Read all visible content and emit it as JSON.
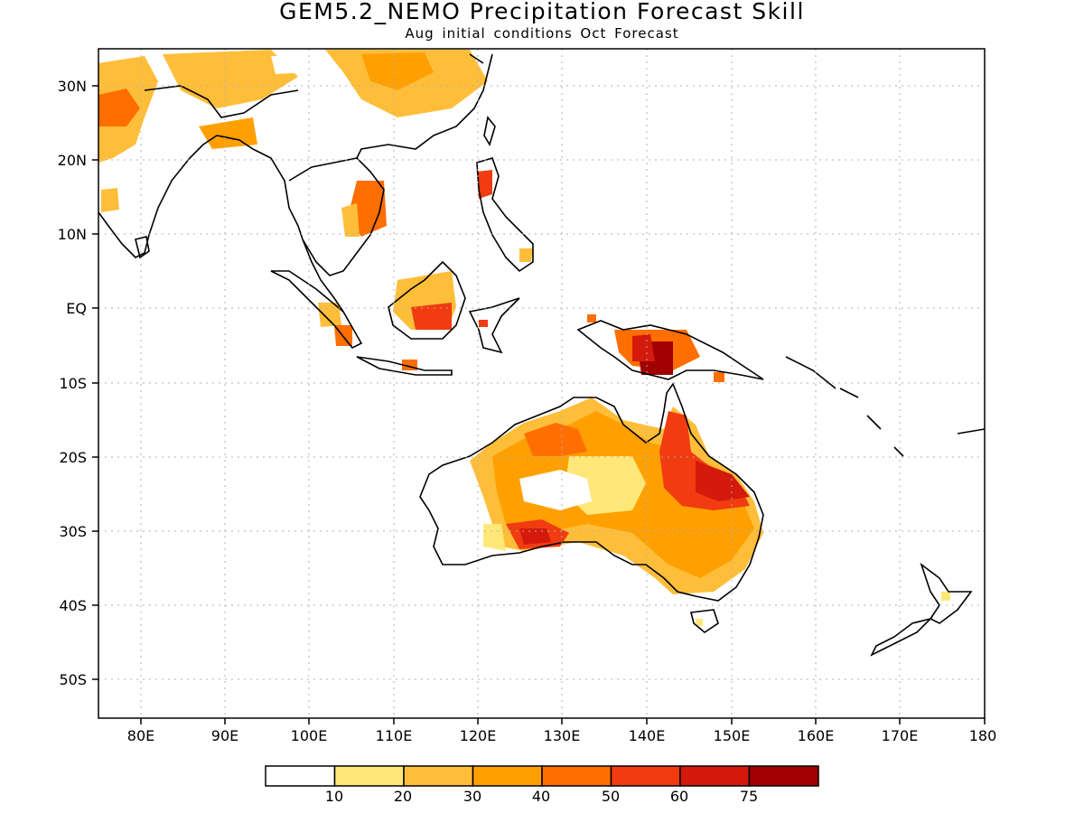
{
  "header": {
    "title": "GEM5.2_NEMO Precipitation Forecast Skill",
    "subtitle": "Aug initial conditions  Oct Forecast"
  },
  "map": {
    "lon_range": [
      75,
      180
    ],
    "lat_range": [
      -55,
      35
    ],
    "x_ticks": [
      "80E",
      "90E",
      "100E",
      "110E",
      "120E",
      "130E",
      "140E",
      "150E",
      "160E",
      "170E",
      "180"
    ],
    "y_ticks": [
      "30N",
      "20N",
      "10N",
      "EQ",
      "10S",
      "20S",
      "30S",
      "40S",
      "50S"
    ],
    "grid": true,
    "grid_style": "dotted"
  },
  "colorbar": {
    "labels": [
      "10",
      "20",
      "30",
      "40",
      "50",
      "60",
      "75"
    ],
    "colors": [
      "#ffffff",
      "#ffe878",
      "#ffbe3a",
      "#ffa000",
      "#ff6e00",
      "#f03c10",
      "#d41a0c",
      "#a00000"
    ]
  },
  "colors": {
    "coastline": "#000000",
    "grid": "#b0b0b0"
  }
}
